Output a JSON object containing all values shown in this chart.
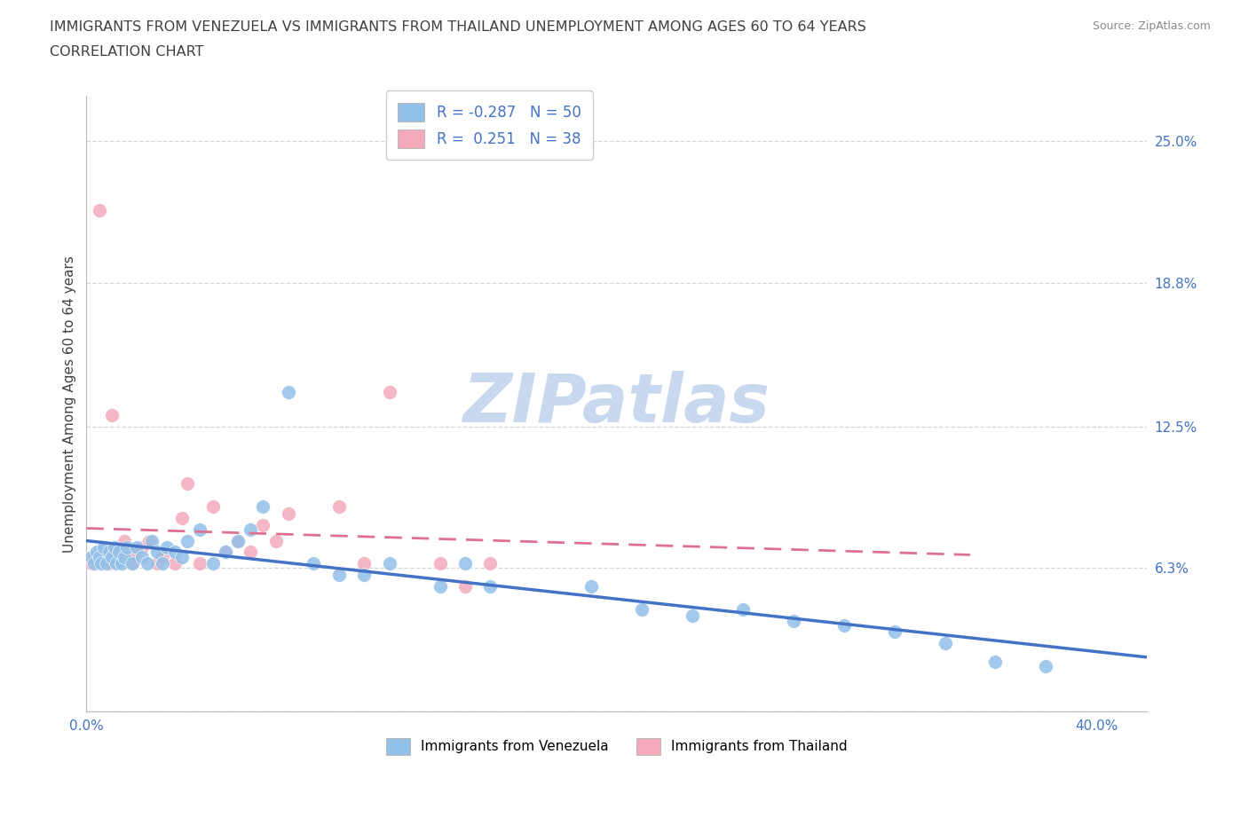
{
  "title_line1": "IMMIGRANTS FROM VENEZUELA VS IMMIGRANTS FROM THAILAND UNEMPLOYMENT AMONG AGES 60 TO 64 YEARS",
  "title_line2": "CORRELATION CHART",
  "source": "Source: ZipAtlas.com",
  "ylabel": "Unemployment Among Ages 60 to 64 years",
  "xlim": [
    0.0,
    0.42
  ],
  "ylim": [
    0.0,
    0.27
  ],
  "ytick_positions": [
    0.0,
    0.063,
    0.125,
    0.188,
    0.25
  ],
  "ytick_labels": [
    "",
    "6.3%",
    "12.5%",
    "18.8%",
    "25.0%"
  ],
  "xtick_positions": [
    0.0,
    0.1,
    0.2,
    0.3,
    0.4
  ],
  "xtick_labels": [
    "0.0%",
    "",
    "",
    "",
    "40.0%"
  ],
  "venezuela_R": -0.287,
  "venezuela_N": 50,
  "thailand_R": 0.251,
  "thailand_N": 38,
  "venezuela_color": "#92C0E8",
  "thailand_color": "#F4AABB",
  "venezuela_line_color": "#4472C4",
  "thailand_line_color": "#E07090",
  "background_color": "#FFFFFF",
  "watermark": "ZIPatlas",
  "watermark_color": "#C8D8EE",
  "grid_color": "#CCCCCC",
  "title_color": "#404040",
  "axis_label_color": "#4472C4",
  "venezuela_x": [
    0.002,
    0.003,
    0.004,
    0.005,
    0.006,
    0.007,
    0.008,
    0.009,
    0.01,
    0.011,
    0.012,
    0.013,
    0.014,
    0.015,
    0.016,
    0.018,
    0.02,
    0.022,
    0.024,
    0.026,
    0.028,
    0.03,
    0.032,
    0.035,
    0.038,
    0.04,
    0.045,
    0.05,
    0.055,
    0.06,
    0.065,
    0.07,
    0.08,
    0.09,
    0.1,
    0.11,
    0.12,
    0.14,
    0.15,
    0.16,
    0.2,
    0.22,
    0.24,
    0.26,
    0.28,
    0.3,
    0.32,
    0.34,
    0.36,
    0.38
  ],
  "venezuela_y": [
    0.068,
    0.065,
    0.07,
    0.068,
    0.065,
    0.072,
    0.065,
    0.07,
    0.068,
    0.072,
    0.065,
    0.07,
    0.065,
    0.068,
    0.072,
    0.065,
    0.072,
    0.068,
    0.065,
    0.075,
    0.07,
    0.065,
    0.072,
    0.07,
    0.068,
    0.075,
    0.08,
    0.065,
    0.07,
    0.075,
    0.08,
    0.09,
    0.14,
    0.065,
    0.06,
    0.06,
    0.065,
    0.055,
    0.065,
    0.055,
    0.055,
    0.045,
    0.042,
    0.045,
    0.04,
    0.038,
    0.035,
    0.03,
    0.022,
    0.02
  ],
  "thailand_x": [
    0.002,
    0.003,
    0.004,
    0.005,
    0.006,
    0.007,
    0.008,
    0.009,
    0.01,
    0.012,
    0.014,
    0.015,
    0.016,
    0.018,
    0.02,
    0.022,
    0.025,
    0.028,
    0.03,
    0.035,
    0.038,
    0.04,
    0.045,
    0.05,
    0.055,
    0.06,
    0.065,
    0.07,
    0.075,
    0.08,
    0.1,
    0.11,
    0.12,
    0.14,
    0.15,
    0.16,
    0.005,
    0.01
  ],
  "thailand_y": [
    0.065,
    0.068,
    0.065,
    0.07,
    0.065,
    0.072,
    0.07,
    0.065,
    0.068,
    0.07,
    0.072,
    0.075,
    0.068,
    0.065,
    0.07,
    0.072,
    0.075,
    0.065,
    0.068,
    0.065,
    0.085,
    0.1,
    0.065,
    0.09,
    0.07,
    0.075,
    0.07,
    0.082,
    0.075,
    0.087,
    0.09,
    0.065,
    0.14,
    0.065,
    0.055,
    0.065,
    0.22,
    0.13
  ]
}
